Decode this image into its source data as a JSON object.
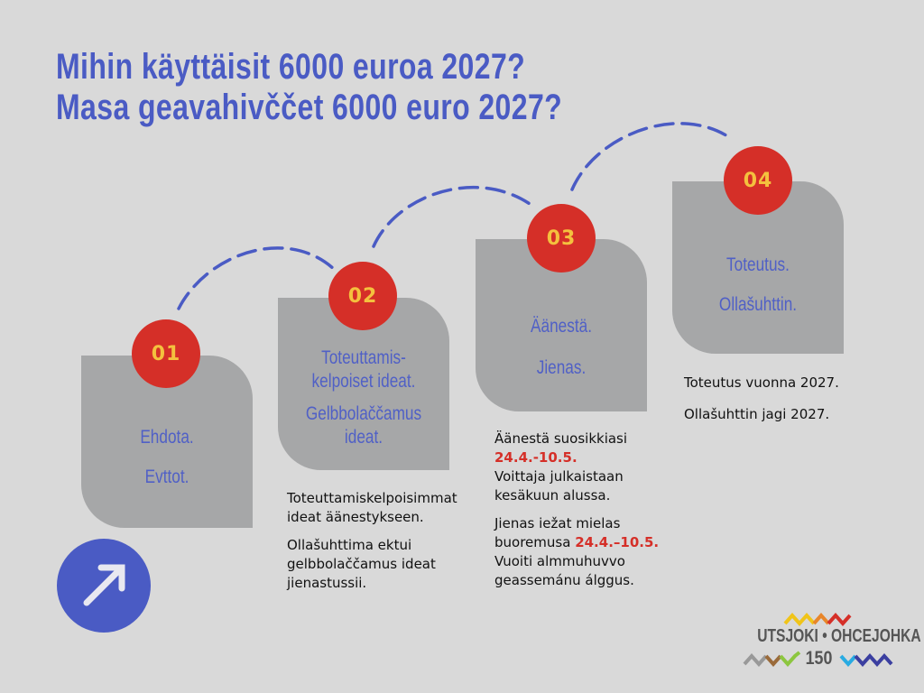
{
  "title": {
    "line1": "Mihin käyttäisit 6000 euroa 2027?",
    "line2": "Masa geavahivččet 6000 euro 2027?"
  },
  "steps": [
    {
      "number": "01",
      "lines": [
        "Ehdota.",
        "Evttot."
      ]
    },
    {
      "number": "02",
      "lines": [
        "Toteuttamis-",
        "kelpoiset ideat.",
        "Gelbbolaččamus",
        "ideat."
      ]
    },
    {
      "number": "03",
      "lines": [
        "Äänestä.",
        "Jienas."
      ]
    },
    {
      "number": "04",
      "lines": [
        "Toteutus.",
        "Ollašuhttin."
      ]
    }
  ],
  "descriptions": {
    "step2": {
      "p1": "Toteuttamiskelpoisimmat ideat äänestykseen.",
      "p2": "Ollašuhttima ektui gelbbolaččamus ideat jienastussii."
    },
    "step3": {
      "p1_a": "Äänestä suosikkiasi",
      "p1_date": "24.4.-10.5.",
      "p1_b": "Voittaja julkaistaan kesäkuun alussa.",
      "p2_a": "Jienas iežat mielas buoremusa",
      "p2_date": "24.4.–10.5.",
      "p2_b": "Vuoiti almmuhuvvo geassemánu álggus."
    },
    "step4": {
      "p1": "Toteutus vuonna 2027.",
      "p2": "Ollašuhttin jagi 2027."
    }
  },
  "logo": {
    "text": "UTSJOKI • OHCEJOHKA",
    "number": "150"
  },
  "icons": {
    "arrow": "arrow-up-right-icon"
  },
  "colors": {
    "background": "#d9d9d9",
    "accent_blue": "#4a5bc4",
    "card_gray": "#a6a7a8",
    "badge_red": "#d52f28",
    "badge_text": "#f4c13e"
  }
}
